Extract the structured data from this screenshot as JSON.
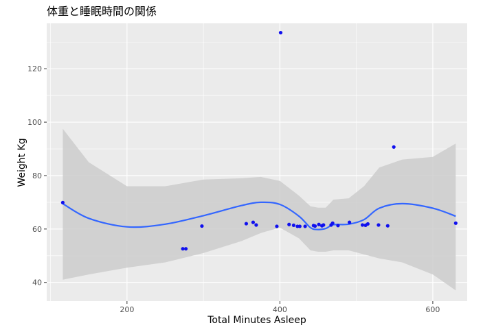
{
  "chart_data": {
    "type": "scatter",
    "title": "体重と睡眠時間の関係",
    "xlabel": "Total Minutes Asleep",
    "ylabel": "Weight Kg",
    "xlim": [
      95,
      645
    ],
    "ylim": [
      33,
      137
    ],
    "x_ticks": [
      200,
      400,
      600
    ],
    "y_ticks": [
      40,
      60,
      80,
      100,
      120
    ],
    "x_tick_labels": [
      "200",
      "400",
      "600"
    ],
    "y_tick_labels": [
      "40",
      "60",
      "80",
      "100",
      "120"
    ],
    "grid": true,
    "points": {
      "x": [
        116,
        273,
        277,
        298,
        356,
        365,
        369,
        396,
        401,
        412,
        418,
        423,
        426,
        433,
        444,
        446,
        451,
        455,
        457,
        467,
        469,
        476,
        491,
        508,
        512,
        515,
        529,
        541,
        549,
        630
      ],
      "y": [
        69.9,
        52.6,
        52.6,
        61.1,
        62.0,
        62.5,
        61.5,
        61.0,
        133.5,
        61.7,
        61.4,
        61.0,
        61.0,
        61.0,
        61.3,
        61.1,
        61.7,
        61.2,
        61.5,
        61.5,
        62.2,
        61.3,
        62.5,
        61.5,
        61.4,
        61.9,
        61.5,
        61.2,
        90.7,
        62.2
      ],
      "color": "#1010ee"
    },
    "smooth": {
      "method": "loess",
      "color": "#3366ff",
      "band_color": "#cccccc",
      "x": [
        116,
        150,
        200,
        250,
        300,
        350,
        375,
        400,
        425,
        440,
        450,
        460,
        470,
        490,
        510,
        530,
        560,
        600,
        630
      ],
      "y": [
        69.5,
        64.0,
        60.8,
        61.8,
        65.0,
        68.8,
        70.0,
        69.2,
        64.8,
        60.5,
        59.8,
        60.2,
        61.6,
        61.8,
        63.5,
        67.8,
        69.5,
        67.8,
        64.8
      ],
      "lower": [
        41.0,
        43.0,
        45.5,
        47.5,
        51.0,
        55.5,
        58.5,
        60.5,
        56.5,
        52.0,
        51.5,
        51.5,
        52.0,
        52.0,
        50.5,
        49.0,
        47.5,
        43.0,
        37.0
      ],
      "upper": [
        97.5,
        85.0,
        76.0,
        76.0,
        78.5,
        79.0,
        79.5,
        78.0,
        72.5,
        68.5,
        68.0,
        68.0,
        71.0,
        71.5,
        76.0,
        83.0,
        86.0,
        87.0,
        92.0
      ]
    }
  }
}
